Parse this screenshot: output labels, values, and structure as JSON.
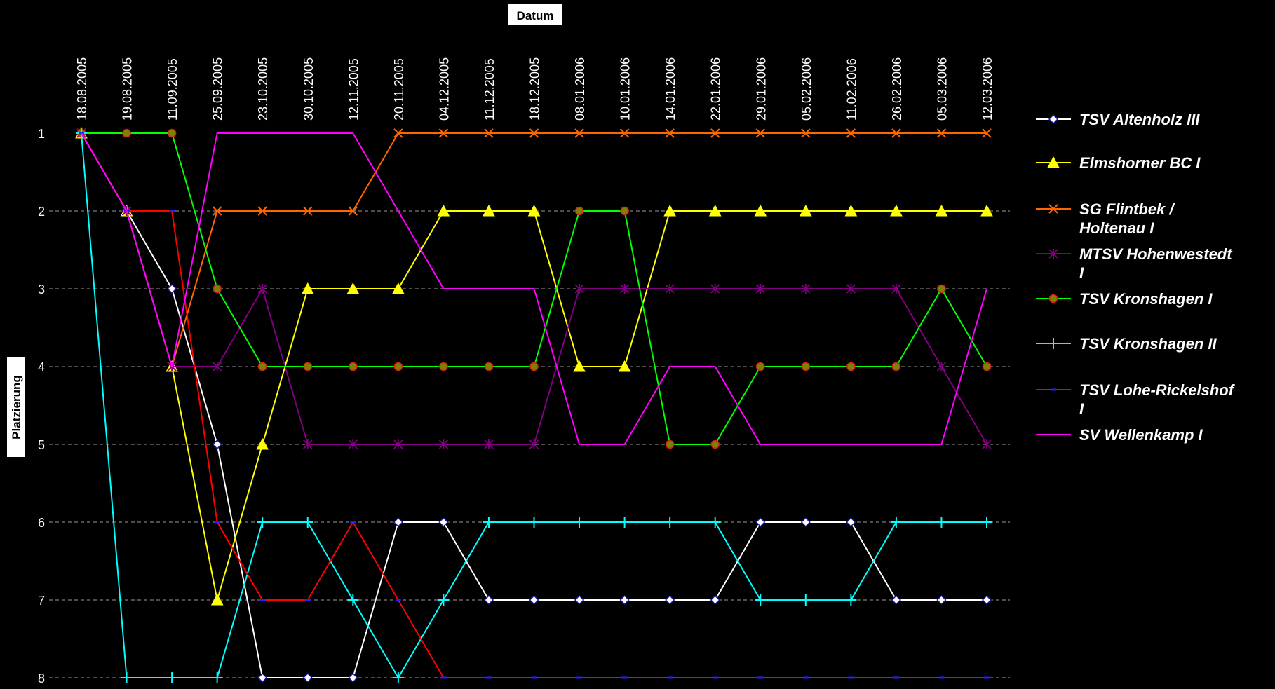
{
  "chart_data": {
    "type": "line",
    "xlabel": "Datum",
    "ylabel": "Platzierung",
    "x_position": "top",
    "y_inverted": true,
    "ylim": [
      1,
      8
    ],
    "y_ticks": [
      1,
      2,
      3,
      4,
      5,
      6,
      7,
      8
    ],
    "grid": "horizontal-dashed",
    "legend_position": "right",
    "categories": [
      "18.08.2005",
      "19.08.2005",
      "11.09.2005",
      "25.09.2005",
      "23.10.2005",
      "30.10.2005",
      "12.11.2005",
      "20.11.2005",
      "04.12.2005",
      "11.12.2005",
      "18.12.2005",
      "08.01.2006",
      "10.01.2006",
      "14.01.2006",
      "22.01.2006",
      "29.01.2006",
      "05.02.2006",
      "11.02.2006",
      "26.02.2006",
      "05.03.2006",
      "12.03.2006"
    ],
    "series": [
      {
        "name": "TSV Altenholz III",
        "color": "#ffffff",
        "marker": "diamond",
        "values": [
          1,
          2,
          3,
          5,
          8,
          8,
          8,
          6,
          6,
          7,
          7,
          7,
          7,
          7,
          7,
          6,
          6,
          6,
          7,
          7,
          7
        ]
      },
      {
        "name": "Elmshorner BC I",
        "color": "#ffff00",
        "marker": "triangle",
        "values": [
          1,
          2,
          4,
          7,
          5,
          3,
          3,
          3,
          2,
          2,
          2,
          4,
          4,
          2,
          2,
          2,
          2,
          2,
          2,
          2,
          2
        ]
      },
      {
        "name": "SG Flintbek / Holtenau I",
        "color": "#ff6600",
        "marker": "x",
        "values": [
          1,
          2,
          4,
          2,
          2,
          2,
          2,
          1,
          1,
          1,
          1,
          1,
          1,
          1,
          1,
          1,
          1,
          1,
          1,
          1,
          1
        ]
      },
      {
        "name": "MTSV Hohenwestedt I",
        "color": "#800080",
        "marker": "star",
        "values": [
          1,
          2,
          4,
          4,
          3,
          5,
          5,
          5,
          5,
          5,
          5,
          3,
          3,
          3,
          3,
          3,
          3,
          3,
          3,
          4,
          5
        ]
      },
      {
        "name": "TSV Kronshagen I",
        "color": "#00ff00",
        "marker": "circle",
        "values": [
          1,
          1,
          1,
          3,
          4,
          4,
          4,
          4,
          4,
          4,
          4,
          2,
          2,
          5,
          5,
          4,
          4,
          4,
          4,
          3,
          4
        ]
      },
      {
        "name": "TSV Kronshagen II",
        "color": "#00ffff",
        "marker": "plus",
        "values": [
          1,
          8,
          8,
          8,
          6,
          6,
          7,
          8,
          7,
          6,
          6,
          6,
          6,
          6,
          6,
          7,
          7,
          7,
          6,
          6,
          6
        ]
      },
      {
        "name": "TSV Lohe-Rickelshof I",
        "color": "#ff0000",
        "marker": "dash",
        "values": [
          1,
          2,
          2,
          6,
          7,
          7,
          6,
          7,
          8,
          8,
          8,
          8,
          8,
          8,
          8,
          8,
          8,
          8,
          8,
          8,
          8
        ]
      },
      {
        "name": "SV Wellenkamp I",
        "color": "#ff00ff",
        "marker": "none",
        "values": [
          1,
          2,
          4,
          1,
          1,
          1,
          1,
          2,
          3,
          3,
          3,
          5,
          5,
          4,
          4,
          5,
          5,
          5,
          5,
          5,
          3
        ]
      }
    ]
  }
}
